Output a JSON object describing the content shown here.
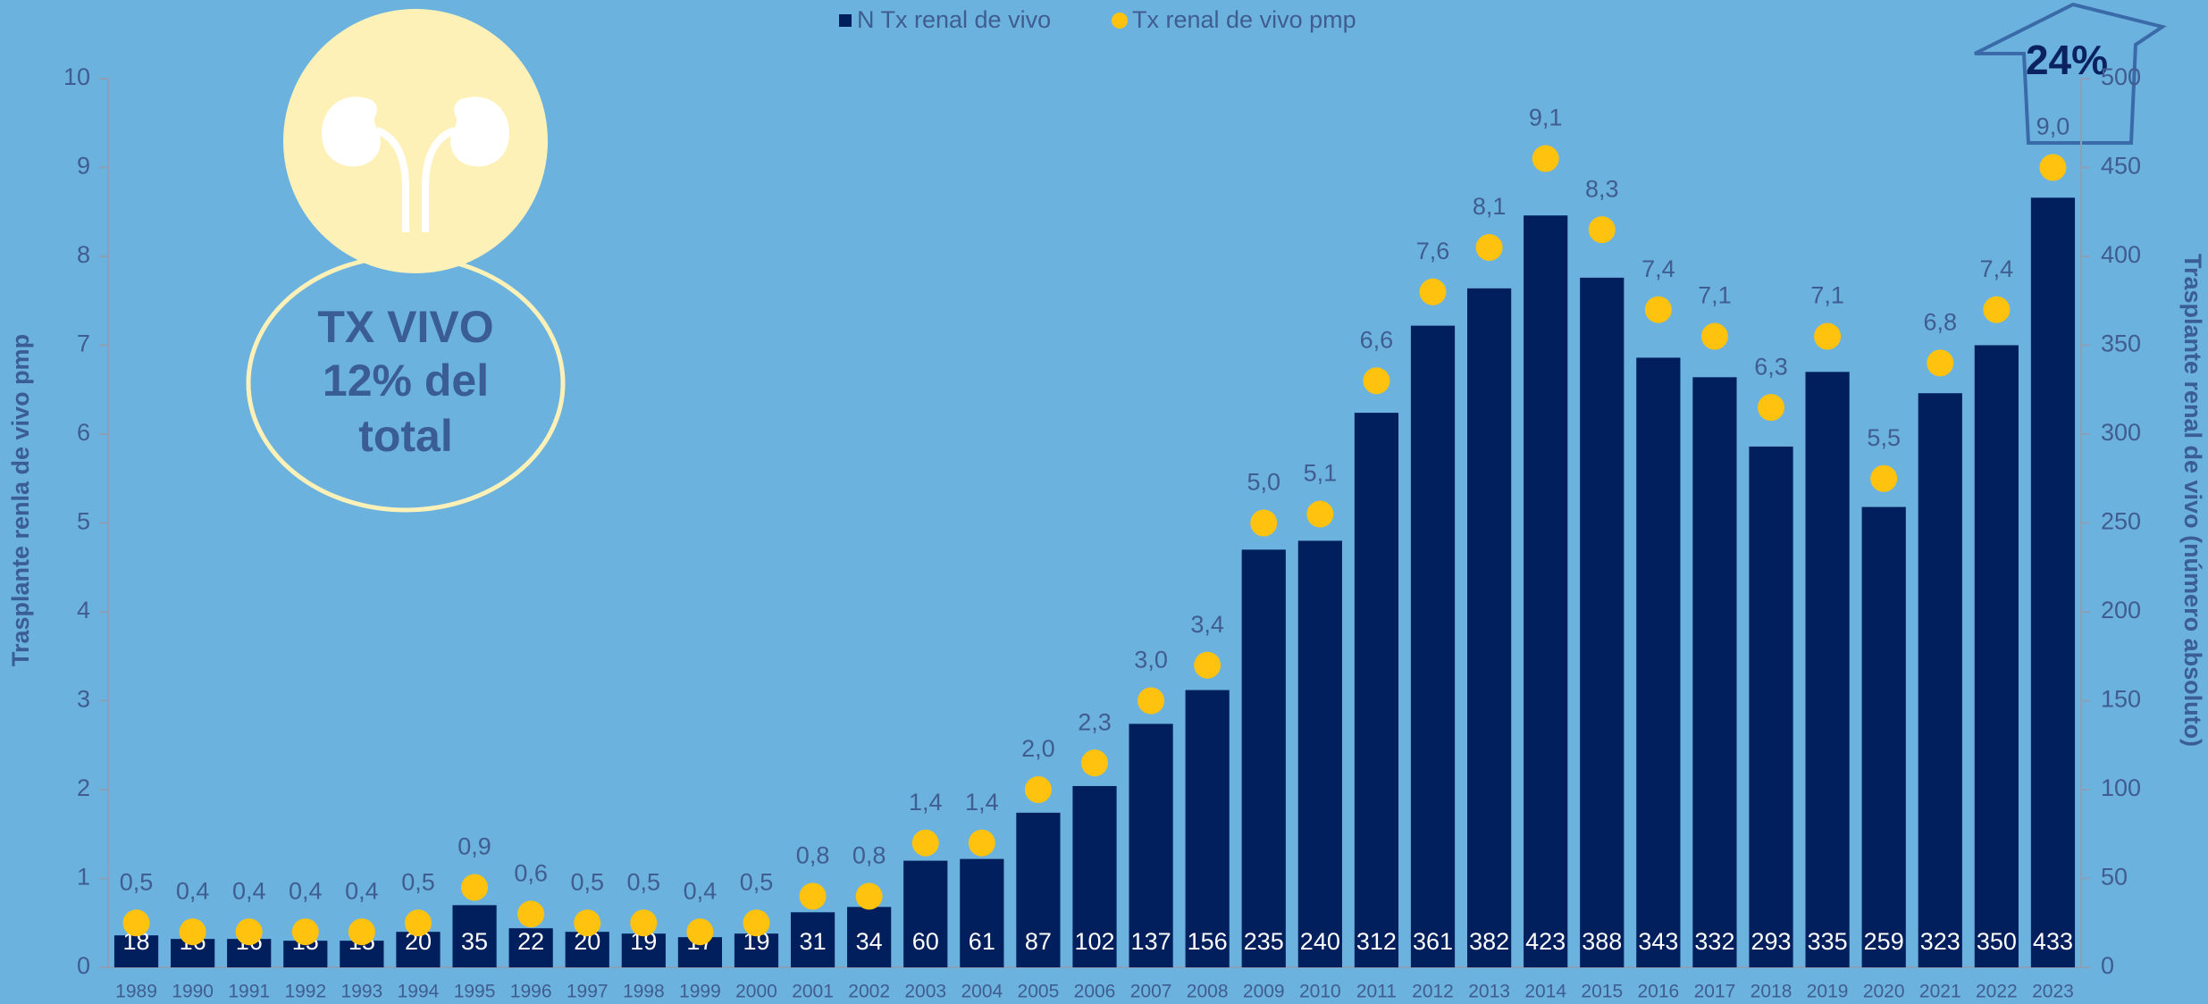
{
  "chart_data": {
    "type": "bar",
    "categories": [
      "1989",
      "1990",
      "1991",
      "1992",
      "1993",
      "1994",
      "1995",
      "1996",
      "1997",
      "1998",
      "1999",
      "2000",
      "2001",
      "2002",
      "2003",
      "2004",
      "2005",
      "2006",
      "2007",
      "2008",
      "2009",
      "2010",
      "2011",
      "2012",
      "2013",
      "2014",
      "2015",
      "2016",
      "2017",
      "2018",
      "2019",
      "2020",
      "2021",
      "2022",
      "2023"
    ],
    "series": [
      {
        "name": "N Tx renal de vivo",
        "type": "bar",
        "color": "#001f5c",
        "axis": "y2",
        "values": [
          18,
          16,
          16,
          15,
          15,
          20,
          35,
          22,
          20,
          19,
          17,
          19,
          31,
          34,
          60,
          61,
          87,
          102,
          137,
          156,
          235,
          240,
          312,
          361,
          382,
          423,
          388,
          343,
          332,
          293,
          335,
          259,
          323,
          350,
          433
        ]
      },
      {
        "name": "Tx renal de vivo pmp",
        "type": "scatter",
        "color": "#ffc20e",
        "values": [
          0.5,
          0.4,
          0.4,
          0.4,
          0.4,
          0.5,
          0.9,
          0.6,
          0.5,
          0.5,
          0.4,
          0.5,
          0.8,
          0.8,
          1.4,
          1.4,
          2.0,
          2.3,
          3.0,
          3.4,
          5.0,
          5.1,
          6.6,
          7.6,
          8.1,
          9.1,
          8.3,
          7.4,
          7.1,
          6.3,
          7.1,
          5.5,
          6.8,
          7.4,
          9.0
        ],
        "value_labels": [
          "0,5",
          "0,4",
          "0,4",
          "0,4",
          "0,4",
          "0,5",
          "0,9",
          "0,6",
          "0,5",
          "0,5",
          "0,4",
          "0,5",
          "0,8",
          "0,8",
          "1,4",
          "1,4",
          "2,0",
          "2,3",
          "3,0",
          "3,4",
          "5,0",
          "5,1",
          "6,6",
          "7,6",
          "8,1",
          "9,1",
          "8,3",
          "7,4",
          "7,1",
          "6,3",
          "7,1",
          "5,5",
          "6,8",
          "7,4",
          "9,0"
        ]
      }
    ],
    "ylabel": "Trasplante renla de vivo pmp",
    "y2label": "Trasplante renal de vivo (número absoluto)",
    "ylim": [
      0,
      10
    ],
    "yticks": [
      0,
      1,
      2,
      3,
      4,
      5,
      6,
      7,
      8,
      9,
      10
    ],
    "y2lim": [
      0,
      500
    ],
    "y2ticks": [
      0,
      50,
      100,
      150,
      200,
      250,
      300,
      350,
      400,
      450,
      500
    ],
    "legend": "top",
    "annotations": [
      "TX VIVO",
      "12% del",
      "total",
      "24%"
    ]
  }
}
